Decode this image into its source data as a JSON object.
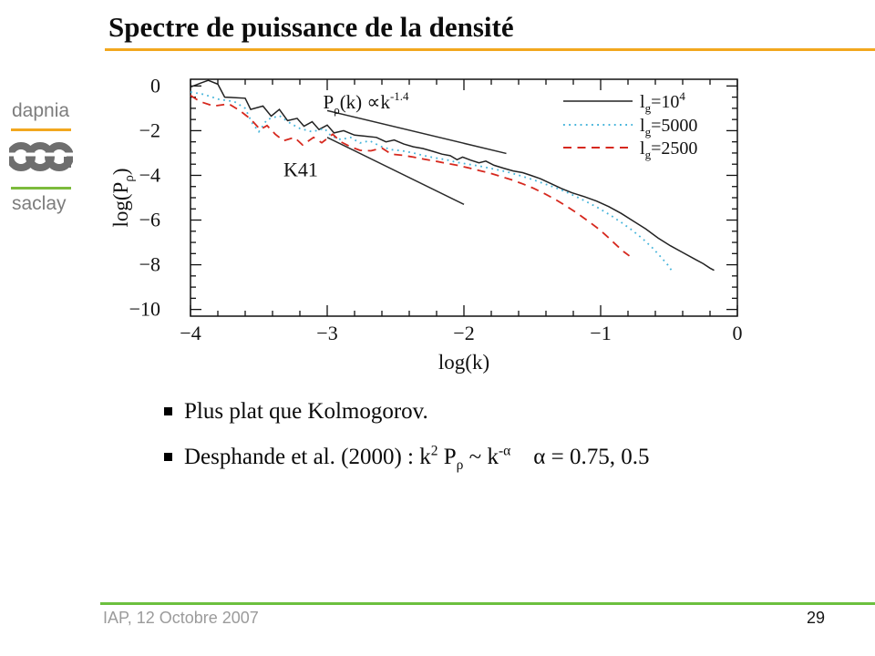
{
  "slide": {
    "title": "Spectre de puissance de la densité",
    "accent_orange": "#F2A71E",
    "logo_green": "#7CBB3C",
    "footer_green": "#6CC03E",
    "logo_gray": "#6E6E6E"
  },
  "logo": {
    "top_label": "dapnia",
    "glyph": "cea-logo",
    "bottom_label": "saclay"
  },
  "bullets": [
    {
      "segments": [
        {
          "t": "Plus plat que Kolmogorov."
        }
      ]
    },
    {
      "segments": [
        {
          "t": "Desphande et al. (2000) : k"
        },
        {
          "t": "2",
          "sup": true
        },
        {
          "t": " P"
        },
        {
          "t": "ρ",
          "sub": true
        },
        {
          "t": " ~ k"
        },
        {
          "t": "-α",
          "sup": true
        },
        {
          "t": "    α = 0.75, 0.5"
        }
      ]
    }
  ],
  "footer": {
    "left": "IAP, 12 Octobre 2007",
    "page": "29"
  },
  "chart_data": {
    "type": "line",
    "xlabel": "log(k)",
    "ylabel": "log(P_ρ)",
    "ylabel_segments": [
      {
        "t": "log(P"
      },
      {
        "t": "ρ",
        "sub": true
      },
      {
        "t": ")"
      }
    ],
    "xlim": [
      -4,
      0
    ],
    "ylim": [
      -10.3,
      0.3
    ],
    "x_major_ticks": [
      -4,
      -3,
      -2,
      -1,
      0
    ],
    "x_tick_labels": [
      "−4",
      "−3",
      "−2",
      "−1",
      "0"
    ],
    "x_minor_step": 0.2,
    "y_major_ticks": [
      0,
      -2,
      -4,
      -6,
      -8,
      -10
    ],
    "y_tick_labels": [
      "0",
      "−2",
      "−4",
      "−6",
      "−8",
      "−10"
    ],
    "y_minor_step": 0.5,
    "grid": false,
    "legend_position": "top-right",
    "series": [
      {
        "name": "lg=10^4",
        "label_segments": [
          {
            "t": "l"
          },
          {
            "t": "g",
            "sub": true
          },
          {
            "t": "=10"
          },
          {
            "t": "4",
            "sup": true
          }
        ],
        "style": "solid",
        "color": "#222222",
        "points": [
          [
            -4.0,
            -0.05
          ],
          [
            -3.93,
            0.12
          ],
          [
            -3.87,
            0.25
          ],
          [
            -3.8,
            0.08
          ],
          [
            -3.75,
            -0.5
          ],
          [
            -3.6,
            -0.55
          ],
          [
            -3.56,
            -1.05
          ],
          [
            -3.47,
            -0.9
          ],
          [
            -3.41,
            -1.35
          ],
          [
            -3.35,
            -1.05
          ],
          [
            -3.29,
            -1.55
          ],
          [
            -3.22,
            -1.45
          ],
          [
            -3.17,
            -1.8
          ],
          [
            -3.11,
            -1.6
          ],
          [
            -3.06,
            -1.95
          ],
          [
            -3.0,
            -1.75
          ],
          [
            -2.95,
            -2.1
          ],
          [
            -2.88,
            -2.0
          ],
          [
            -2.8,
            -2.2
          ],
          [
            -2.72,
            -2.25
          ],
          [
            -2.64,
            -2.3
          ],
          [
            -2.57,
            -2.5
          ],
          [
            -2.51,
            -2.42
          ],
          [
            -2.44,
            -2.6
          ],
          [
            -2.37,
            -2.72
          ],
          [
            -2.3,
            -2.8
          ],
          [
            -2.23,
            -2.92
          ],
          [
            -2.16,
            -3.05
          ],
          [
            -2.1,
            -3.12
          ],
          [
            -2.05,
            -3.3
          ],
          [
            -2.01,
            -3.18
          ],
          [
            -1.95,
            -3.32
          ],
          [
            -1.89,
            -3.44
          ],
          [
            -1.84,
            -3.36
          ],
          [
            -1.78,
            -3.55
          ],
          [
            -1.71,
            -3.68
          ],
          [
            -1.64,
            -3.8
          ],
          [
            -1.57,
            -3.88
          ],
          [
            -1.51,
            -4.0
          ],
          [
            -1.44,
            -4.15
          ],
          [
            -1.37,
            -4.35
          ],
          [
            -1.29,
            -4.58
          ],
          [
            -1.21,
            -4.78
          ],
          [
            -1.12,
            -4.95
          ],
          [
            -1.03,
            -5.15
          ],
          [
            -0.94,
            -5.4
          ],
          [
            -0.85,
            -5.7
          ],
          [
            -0.76,
            -6.05
          ],
          [
            -0.67,
            -6.4
          ],
          [
            -0.58,
            -6.8
          ],
          [
            -0.49,
            -7.15
          ],
          [
            -0.4,
            -7.45
          ],
          [
            -0.32,
            -7.72
          ],
          [
            -0.25,
            -7.95
          ],
          [
            -0.2,
            -8.15
          ],
          [
            -0.17,
            -8.25
          ]
        ]
      },
      {
        "name": "lg=5000",
        "label_segments": [
          {
            "t": "l"
          },
          {
            "t": "g",
            "sub": true
          },
          {
            "t": "=5000"
          }
        ],
        "style": "dotted",
        "color": "#45b4da",
        "points": [
          [
            -4.0,
            -0.27
          ],
          [
            -3.9,
            -0.38
          ],
          [
            -3.79,
            -0.6
          ],
          [
            -3.68,
            -0.7
          ],
          [
            -3.6,
            -1.0
          ],
          [
            -3.55,
            -1.65
          ],
          [
            -3.5,
            -2.05
          ],
          [
            -3.44,
            -1.5
          ],
          [
            -3.35,
            -1.33
          ],
          [
            -3.27,
            -1.67
          ],
          [
            -3.2,
            -1.9
          ],
          [
            -3.11,
            -2.05
          ],
          [
            -3.02,
            -1.9
          ],
          [
            -2.97,
            -2.25
          ],
          [
            -2.9,
            -2.4
          ],
          [
            -2.83,
            -2.3
          ],
          [
            -2.76,
            -2.55
          ],
          [
            -2.69,
            -2.45
          ],
          [
            -2.61,
            -2.7
          ],
          [
            -2.53,
            -2.85
          ],
          [
            -2.45,
            -2.9
          ],
          [
            -2.37,
            -3.0
          ],
          [
            -2.29,
            -3.12
          ],
          [
            -2.21,
            -3.22
          ],
          [
            -2.13,
            -3.3
          ],
          [
            -2.05,
            -3.42
          ],
          [
            -1.97,
            -3.5
          ],
          [
            -1.89,
            -3.58
          ],
          [
            -1.81,
            -3.68
          ],
          [
            -1.73,
            -3.78
          ],
          [
            -1.65,
            -3.9
          ],
          [
            -1.57,
            -4.05
          ],
          [
            -1.49,
            -4.2
          ],
          [
            -1.41,
            -4.38
          ],
          [
            -1.33,
            -4.55
          ],
          [
            -1.25,
            -4.75
          ],
          [
            -1.17,
            -4.98
          ],
          [
            -1.09,
            -5.22
          ],
          [
            -1.01,
            -5.48
          ],
          [
            -0.93,
            -5.78
          ],
          [
            -0.85,
            -6.1
          ],
          [
            -0.77,
            -6.45
          ],
          [
            -0.69,
            -6.85
          ],
          [
            -0.62,
            -7.25
          ],
          [
            -0.56,
            -7.65
          ],
          [
            -0.51,
            -8.0
          ],
          [
            -0.47,
            -8.35
          ]
        ]
      },
      {
        "name": "lg=2500",
        "label_segments": [
          {
            "t": "l"
          },
          {
            "t": "g",
            "sub": true
          },
          {
            "t": "=2500"
          }
        ],
        "style": "dashed",
        "color": "#d6281e",
        "points": [
          [
            -4.0,
            -0.42
          ],
          [
            -3.93,
            -0.7
          ],
          [
            -3.83,
            -0.9
          ],
          [
            -3.72,
            -0.8
          ],
          [
            -3.64,
            -1.1
          ],
          [
            -3.56,
            -1.48
          ],
          [
            -3.49,
            -1.95
          ],
          [
            -3.44,
            -1.77
          ],
          [
            -3.38,
            -2.16
          ],
          [
            -3.32,
            -2.45
          ],
          [
            -3.24,
            -2.3
          ],
          [
            -3.18,
            -2.64
          ],
          [
            -3.1,
            -2.3
          ],
          [
            -3.04,
            -2.54
          ],
          [
            -2.96,
            -2.16
          ],
          [
            -2.9,
            -2.5
          ],
          [
            -2.83,
            -2.72
          ],
          [
            -2.76,
            -2.88
          ],
          [
            -2.68,
            -2.9
          ],
          [
            -2.6,
            -2.78
          ],
          [
            -2.53,
            -3.05
          ],
          [
            -2.45,
            -3.1
          ],
          [
            -2.37,
            -3.18
          ],
          [
            -2.29,
            -3.28
          ],
          [
            -2.21,
            -3.36
          ],
          [
            -2.13,
            -3.46
          ],
          [
            -2.05,
            -3.55
          ],
          [
            -1.97,
            -3.66
          ],
          [
            -1.89,
            -3.78
          ],
          [
            -1.81,
            -3.9
          ],
          [
            -1.73,
            -4.05
          ],
          [
            -1.65,
            -4.2
          ],
          [
            -1.57,
            -4.38
          ],
          [
            -1.49,
            -4.58
          ],
          [
            -1.41,
            -4.82
          ],
          [
            -1.33,
            -5.08
          ],
          [
            -1.25,
            -5.38
          ],
          [
            -1.17,
            -5.7
          ],
          [
            -1.09,
            -6.05
          ],
          [
            -1.01,
            -6.42
          ],
          [
            -0.94,
            -6.8
          ],
          [
            -0.88,
            -7.15
          ],
          [
            -0.83,
            -7.42
          ],
          [
            -0.79,
            -7.6
          ]
        ]
      }
    ],
    "reference_lines": [
      {
        "name": "k-1.4-slope-line",
        "slope": -1.4,
        "from": [
          -3.0,
          -1.1
        ],
        "to": [
          -1.69,
          -3.02
        ],
        "color": "#2a2a2a"
      },
      {
        "name": "k41-slope-line",
        "slope": -3.0,
        "from": [
          -3.0,
          -2.3
        ],
        "to": [
          -2.0,
          -5.3
        ],
        "color": "#2a2a2a"
      }
    ],
    "annotations": [
      {
        "name": "power-law-label",
        "x": -3.03,
        "y": -1.0,
        "size": 21,
        "segments": [
          {
            "t": "P"
          },
          {
            "t": "ρ",
            "sub": true
          },
          {
            "t": "(k)  ∝"
          },
          {
            "t": "k"
          },
          {
            "t": "-1.4",
            "sup": true
          }
        ]
      },
      {
        "name": "k41-label",
        "x": -3.32,
        "y": -4.05,
        "size": 22,
        "segments": [
          {
            "t": "K41"
          }
        ]
      }
    ]
  }
}
